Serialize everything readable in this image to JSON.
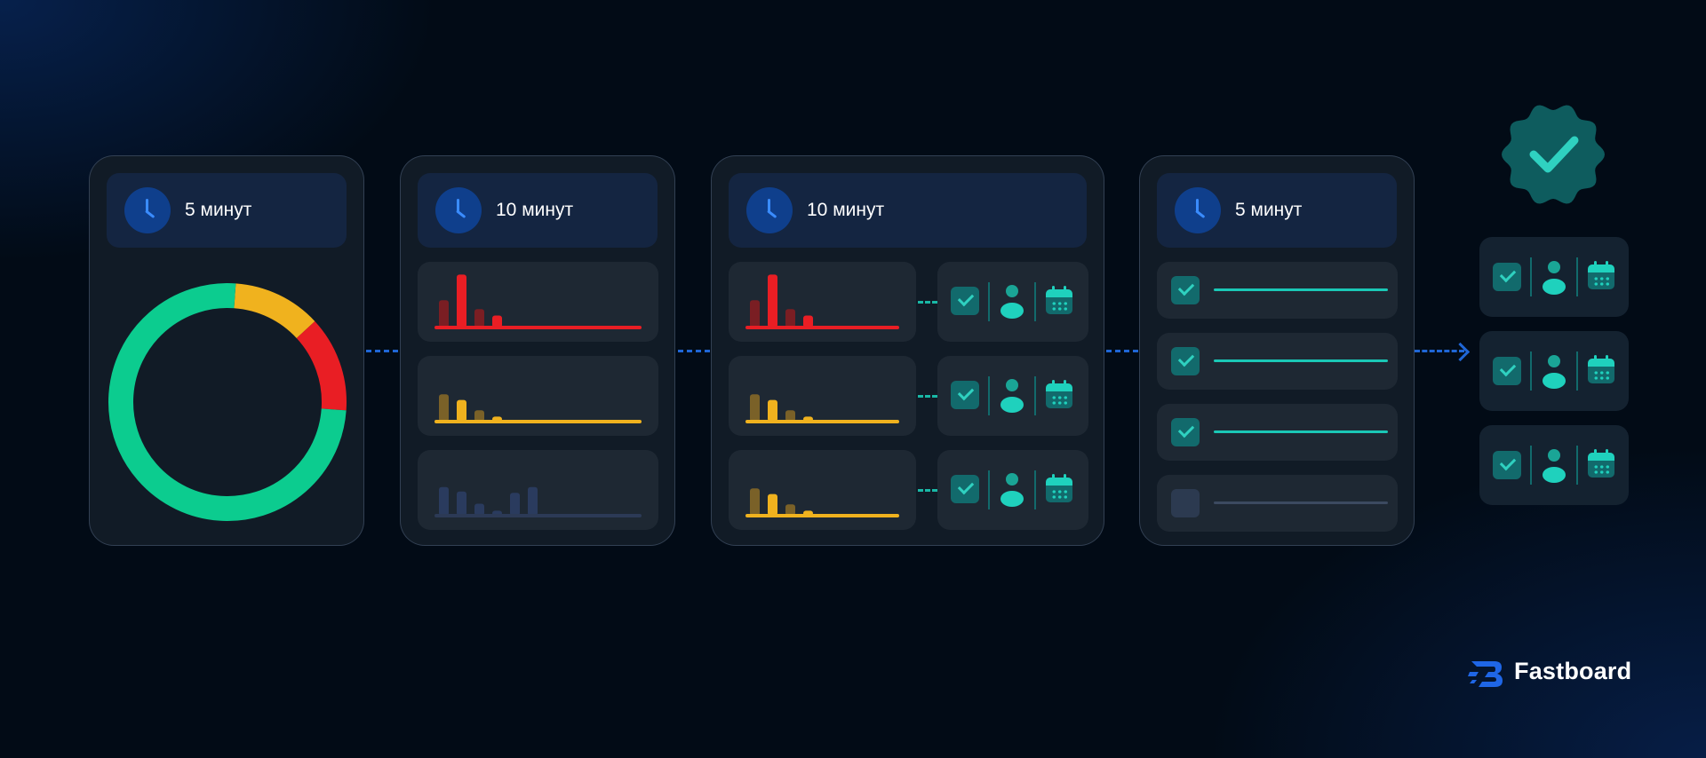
{
  "stages": [
    {
      "duration": "5 минут"
    },
    {
      "duration": "10 минут"
    },
    {
      "duration": "10 минут"
    },
    {
      "duration": "5 минут"
    }
  ],
  "donut": {
    "segments": [
      {
        "color": "#f0b21e",
        "value": 12
      },
      {
        "color": "#e91e24",
        "value": 13
      },
      {
        "color": "#0ccc8f",
        "value": 75
      }
    ]
  },
  "mini_charts": {
    "red": {
      "bars": [
        4,
        8,
        2.6,
        1.6
      ],
      "bar_color": "#e91e24",
      "fade_color": "#7a1e23",
      "line_color": "#e91e24"
    },
    "yellow": {
      "bars": [
        4,
        3.1,
        1.5,
        0.5
      ],
      "bar_color": "#f0b21e",
      "fade_color": "#7a6128",
      "line_color": "#f0b21e"
    },
    "blue": {
      "bars": [
        4.2,
        3.5,
        1.6,
        0.5,
        3.3,
        4.2
      ],
      "bar_color": "#2a3b5e",
      "fade_color": "#243350",
      "line_color": "#2c3a56"
    }
  },
  "colors": {
    "teal": "#1ac8b6",
    "connector": "#1f66d6",
    "card": "#111b26",
    "panel": "#1e2833",
    "header": "#142541"
  },
  "checklist": [
    {
      "checked": true
    },
    {
      "checked": true
    },
    {
      "checked": true
    },
    {
      "checked": false
    }
  ],
  "icons": [
    "clock-icon",
    "check-icon",
    "person-icon",
    "calendar-icon",
    "badge-check-icon",
    "fastboard-logo-icon"
  ],
  "brand": {
    "name": "Fastboard"
  }
}
